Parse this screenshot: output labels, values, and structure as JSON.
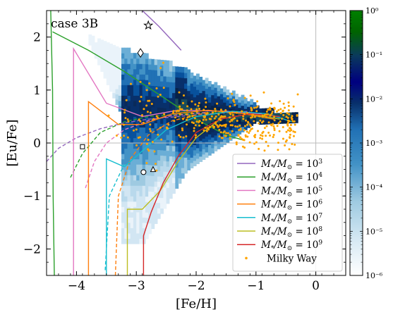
{
  "chart_data": {
    "type": "scatter",
    "annotation": "case 3B",
    "xlabel": "[Fe/H]",
    "ylabel": "[Eu/Fe]",
    "xlim": [
      -4.5,
      0.5
    ],
    "ylim": [
      -2.5,
      2.5
    ],
    "xticks": [
      -4,
      -3,
      -2,
      -1,
      0
    ],
    "xtick_labels": [
      "−4",
      "−3",
      "−2",
      "−1",
      "0"
    ],
    "yticks": [
      -2,
      -1,
      0,
      1,
      2
    ],
    "ytick_labels": [
      "−2",
      "−1",
      "0",
      "1",
      "2"
    ],
    "reference_lines": {
      "x": 0,
      "y": 0
    },
    "grid": false,
    "legend_position": "lower-right",
    "colorbar": {
      "scale": "log",
      "range": [
        1e-06,
        1
      ],
      "ticks": [
        1e-06,
        1e-05,
        0.0001,
        0.001,
        0.01,
        0.1,
        1
      ],
      "tick_labels": [
        "10⁻⁶",
        "10⁻⁵",
        "10⁻⁴",
        "10⁻³",
        "10⁻²",
        "10⁻¹",
        "10⁰"
      ],
      "colors": [
        "#ffffff",
        "#dbecf5",
        "#9ecae1",
        "#4292c6",
        "#2171b5",
        "#08306b",
        "#000080",
        "#0a3a5c",
        "#006400",
        "#008000"
      ]
    },
    "series": [
      {
        "name": "M*/M⊙ = 10³",
        "label_base": "M",
        "label_sub": "*",
        "label_mid": "/M",
        "label_sub2": "⊙",
        "label_eq": " = 10",
        "label_exp": "3",
        "color": "#9467bd",
        "solid": [
          [
            -2.9,
            2.5
          ],
          [
            -2.62,
            2.2
          ],
          [
            -2.25,
            1.75
          ]
        ],
        "dashed": [
          [
            -4.5,
            -0.35
          ],
          [
            -4.3,
            -0.1
          ],
          [
            -4.0,
            0.1
          ],
          [
            -3.6,
            0.27
          ],
          [
            -3.2,
            0.38
          ],
          [
            -2.8,
            0.45
          ],
          [
            -2.3,
            0.5
          ],
          [
            -1.8,
            0.55
          ],
          [
            -1.4,
            0.58
          ],
          [
            -1.1,
            0.6
          ]
        ]
      },
      {
        "name": "M*/M⊙ = 10⁴",
        "label_base": "M",
        "label_sub": "*",
        "label_mid": "/M",
        "label_sub2": "⊙",
        "label_eq": " = 10",
        "label_exp": "4",
        "color": "#2ca02c",
        "solid": [
          [
            -4.43,
            2.5
          ],
          [
            -4.4,
            1.0
          ],
          [
            -4.39,
            -1.0
          ],
          [
            -4.37,
            -2.5
          ]
        ],
        "solid2": [
          [
            -4.4,
            2.1
          ],
          [
            -3.8,
            1.75
          ],
          [
            -3.2,
            1.35
          ],
          [
            -2.6,
            0.9
          ],
          [
            -2.0,
            0.45
          ],
          [
            -1.5,
            0.15
          ],
          [
            -1.2,
            0.05
          ]
        ],
        "dashed": [
          [
            -4.1,
            -0.65
          ],
          [
            -3.9,
            -0.2
          ],
          [
            -3.6,
            0.2
          ],
          [
            -3.2,
            0.4
          ],
          [
            -2.8,
            0.5
          ],
          [
            -2.2,
            0.55
          ],
          [
            -1.6,
            0.58
          ],
          [
            -1.2,
            0.6
          ]
        ]
      },
      {
        "name": "M*/M⊙ = 10⁵",
        "label_base": "M",
        "label_sub": "*",
        "label_mid": "/M",
        "label_sub2": "⊙",
        "label_eq": " = 10",
        "label_exp": "5",
        "color": "#e377c2",
        "solid": [
          [
            -4.05,
            -2.5
          ],
          [
            -4.05,
            1.78
          ],
          [
            -3.5,
            0.75
          ],
          [
            -2.9,
            0.5
          ],
          [
            -2.3,
            0.62
          ],
          [
            -1.5,
            0.6
          ],
          [
            -0.9,
            0.55
          ]
        ],
        "dashed": [
          [
            -3.85,
            -0.85
          ],
          [
            -3.7,
            -0.35
          ],
          [
            -3.5,
            0.0
          ],
          [
            -3.2,
            0.25
          ],
          [
            -2.8,
            0.42
          ],
          [
            -2.4,
            0.52
          ],
          [
            -1.8,
            0.58
          ]
        ]
      },
      {
        "name": "M*/M⊙ = 10⁶",
        "label_base": "M",
        "label_sub": "*",
        "label_mid": "/M",
        "label_sub2": "⊙",
        "label_eq": " = 10",
        "label_exp": "6",
        "color": "#ff7f0e",
        "solid": [
          [
            -3.8,
            -2.5
          ],
          [
            -3.8,
            0.78
          ],
          [
            -3.3,
            0.35
          ],
          [
            -2.9,
            0.35
          ],
          [
            -2.4,
            0.55
          ],
          [
            -1.8,
            0.62
          ],
          [
            -1.2,
            0.55
          ],
          [
            -0.7,
            0.45
          ]
        ],
        "dashed": [
          [
            -3.35,
            -2.5
          ],
          [
            -3.3,
            -1.0
          ],
          [
            -3.1,
            -0.3
          ],
          [
            -2.8,
            0.15
          ],
          [
            -2.4,
            0.42
          ],
          [
            -1.8,
            0.58
          ]
        ]
      },
      {
        "name": "M*/M⊙ = 10⁷",
        "label_base": "M",
        "label_sub": "*",
        "label_mid": "/M",
        "label_sub2": "⊙",
        "label_eq": " = 10",
        "label_exp": "7",
        "color": "#17becf",
        "solid": [
          [
            -3.5,
            -2.5
          ],
          [
            -3.5,
            -0.3
          ],
          [
            -3.2,
            -0.45
          ],
          [
            -2.9,
            -0.15
          ],
          [
            -2.5,
            0.25
          ],
          [
            -2.0,
            0.5
          ],
          [
            -1.4,
            0.6
          ],
          [
            -0.8,
            0.55
          ],
          [
            -0.4,
            0.4
          ]
        ],
        "dashed": [
          [
            -3.52,
            -2.4
          ],
          [
            -3.45,
            -1.0
          ],
          [
            -3.2,
            -0.4
          ]
        ]
      },
      {
        "name": "M*/M⊙ = 10⁸",
        "label_base": "M",
        "label_sub": "*",
        "label_mid": "/M",
        "label_sub2": "⊙",
        "label_eq": " = 10",
        "label_exp": "8",
        "color": "#bcbd22",
        "solid": [
          [
            -3.15,
            -2.5
          ],
          [
            -3.15,
            -1.25
          ],
          [
            -2.9,
            -1.25
          ],
          [
            -2.6,
            -0.9
          ],
          [
            -2.3,
            -0.35
          ],
          [
            -2.0,
            0.1
          ],
          [
            -1.6,
            0.45
          ],
          [
            -1.1,
            0.55
          ],
          [
            -0.6,
            0.45
          ]
        ],
        "dashed": []
      },
      {
        "name": "M*/M⊙ = 10⁹",
        "label_base": "M",
        "label_sub": "*",
        "label_mid": "/M",
        "label_sub2": "⊙",
        "label_eq": " = 10",
        "label_exp": "9",
        "color": "#d62728",
        "solid": [
          [
            -2.88,
            -2.5
          ],
          [
            -2.88,
            -1.75
          ],
          [
            -2.75,
            -1.3
          ],
          [
            -2.55,
            -0.75
          ],
          [
            -2.3,
            -0.25
          ],
          [
            -2.0,
            0.2
          ],
          [
            -1.6,
            0.45
          ],
          [
            -1.1,
            0.55
          ],
          [
            -0.6,
            0.5
          ]
        ],
        "dashed": []
      },
      {
        "name": "Milky Way",
        "color": "#ffa500",
        "type": "scatter"
      }
    ],
    "markers": [
      {
        "symbol": "star",
        "x": -2.8,
        "y": 2.22
      },
      {
        "symbol": "diamond",
        "x": -2.93,
        "y": 1.7
      },
      {
        "symbol": "square",
        "x": -3.9,
        "y": -0.07
      },
      {
        "symbol": "circle",
        "x": -2.88,
        "y": -0.55
      },
      {
        "symbol": "triangle",
        "x": -2.72,
        "y": -0.5
      }
    ]
  }
}
